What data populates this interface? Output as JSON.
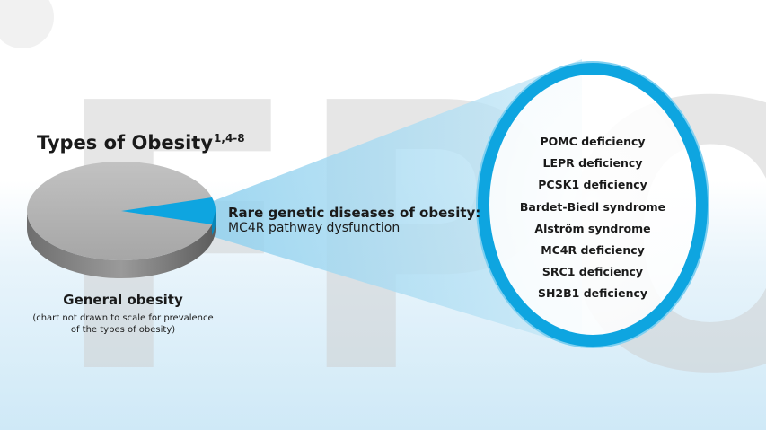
{
  "watermark": "FPO",
  "title": {
    "text": "Types of Obesity",
    "superscript": "1,4-8"
  },
  "pie": {
    "label": "General obesity",
    "note_line1": "(chart not drawn to scale for prevalence",
    "note_line2": "of the types of obesity)",
    "colors": {
      "main": "#a9a9a9",
      "slice": "#0ea5e0"
    }
  },
  "rare": {
    "heading": "Rare genetic diseases of obesity:",
    "subheading": "MC4R pathway dysfunction"
  },
  "diseases": [
    "POMC deficiency",
    "LEPR deficiency",
    "PCSK1 deficiency",
    "Bardet-Biedl syndrome",
    "Alström syndrome",
    "MC4R deficiency",
    "SRC1 deficiency",
    "SH2B1 deficiency"
  ],
  "colors": {
    "accent": "#0ea5e0",
    "beam": "#bfe4f5"
  }
}
